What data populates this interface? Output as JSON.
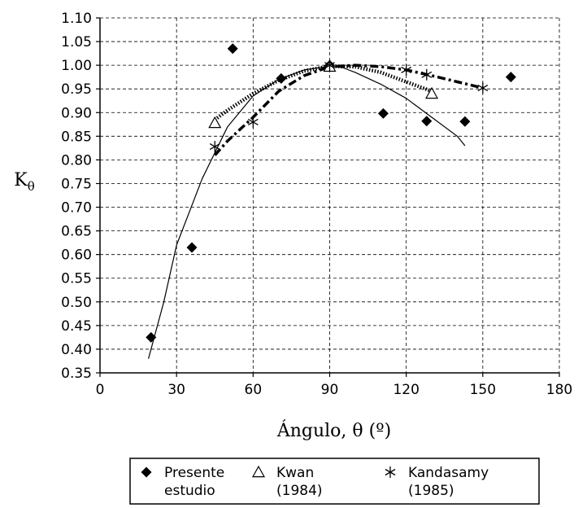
{
  "chart_data": {
    "type": "scatter",
    "title": "",
    "xlabel": "Ángulo, θ (º)",
    "ylabel": "Kθ",
    "ylabel_main": "K",
    "ylabel_sub": "θ",
    "xlim": [
      0,
      180
    ],
    "ylim": [
      0.35,
      1.1
    ],
    "x_ticks": [
      "0",
      "30",
      "60",
      "90",
      "120",
      "150",
      "180"
    ],
    "y_ticks": [
      "0.35",
      "0.40",
      "0.45",
      "0.50",
      "0.55",
      "0.60",
      "0.65",
      "0.70",
      "0.75",
      "0.80",
      "0.85",
      "0.90",
      "0.95",
      "1.00",
      "1.05",
      "1.10"
    ],
    "grid": true,
    "legend_position": "bottom",
    "series": [
      {
        "name": "Presente estudio",
        "marker": "diamond",
        "points": [
          [
            20,
            0.425
          ],
          [
            36,
            0.615
          ],
          [
            52,
            1.035
          ],
          [
            71,
            0.972
          ],
          [
            90,
            1.0
          ],
          [
            111,
            0.898
          ],
          [
            128,
            0.882
          ],
          [
            143,
            0.881
          ],
          [
            161,
            0.975
          ]
        ],
        "fit": [
          [
            19,
            0.38
          ],
          [
            25,
            0.5
          ],
          [
            30,
            0.62
          ],
          [
            40,
            0.76
          ],
          [
            50,
            0.87
          ],
          [
            60,
            0.935
          ],
          [
            70,
            0.97
          ],
          [
            80,
            0.99
          ],
          [
            90,
            0.998
          ],
          [
            95,
            0.995
          ],
          [
            100,
            0.985
          ],
          [
            110,
            0.96
          ],
          [
            120,
            0.93
          ],
          [
            130,
            0.89
          ],
          [
            140,
            0.85
          ],
          [
            143,
            0.83
          ]
        ],
        "fit_style": "thin"
      },
      {
        "name": "Kwan (1984)",
        "marker": "triangle",
        "points": [
          [
            45,
            0.878
          ],
          [
            90,
            0.997
          ],
          [
            130,
            0.94
          ]
        ],
        "fit": [
          [
            45,
            0.885
          ],
          [
            50,
            0.905
          ],
          [
            60,
            0.94
          ],
          [
            70,
            0.968
          ],
          [
            80,
            0.988
          ],
          [
            90,
            0.998
          ],
          [
            100,
            0.997
          ],
          [
            110,
            0.985
          ],
          [
            120,
            0.965
          ],
          [
            130,
            0.945
          ]
        ],
        "fit_style": "dotted-thick"
      },
      {
        "name": "Kandasamy (1985)",
        "marker": "asterisk",
        "points": [
          [
            45,
            0.828
          ],
          [
            60,
            0.88
          ],
          [
            90,
            1.0
          ],
          [
            120,
            0.99
          ],
          [
            128,
            0.98
          ],
          [
            150,
            0.952
          ]
        ],
        "fit": [
          [
            45,
            0.81
          ],
          [
            50,
            0.84
          ],
          [
            60,
            0.89
          ],
          [
            70,
            0.945
          ],
          [
            80,
            0.978
          ],
          [
            90,
            0.997
          ],
          [
            100,
            1.0
          ],
          [
            110,
            0.997
          ],
          [
            120,
            0.99
          ],
          [
            130,
            0.978
          ],
          [
            140,
            0.965
          ],
          [
            150,
            0.952
          ]
        ],
        "fit_style": "dash-dot-thick"
      }
    ],
    "legend": [
      {
        "marker": "diamond",
        "lines": [
          "Presente",
          "estudio"
        ]
      },
      {
        "marker": "triangle",
        "lines": [
          "Kwan",
          "(1984)"
        ]
      },
      {
        "marker": "asterisk",
        "lines": [
          "Kandasamy",
          "(1985)"
        ]
      }
    ]
  }
}
